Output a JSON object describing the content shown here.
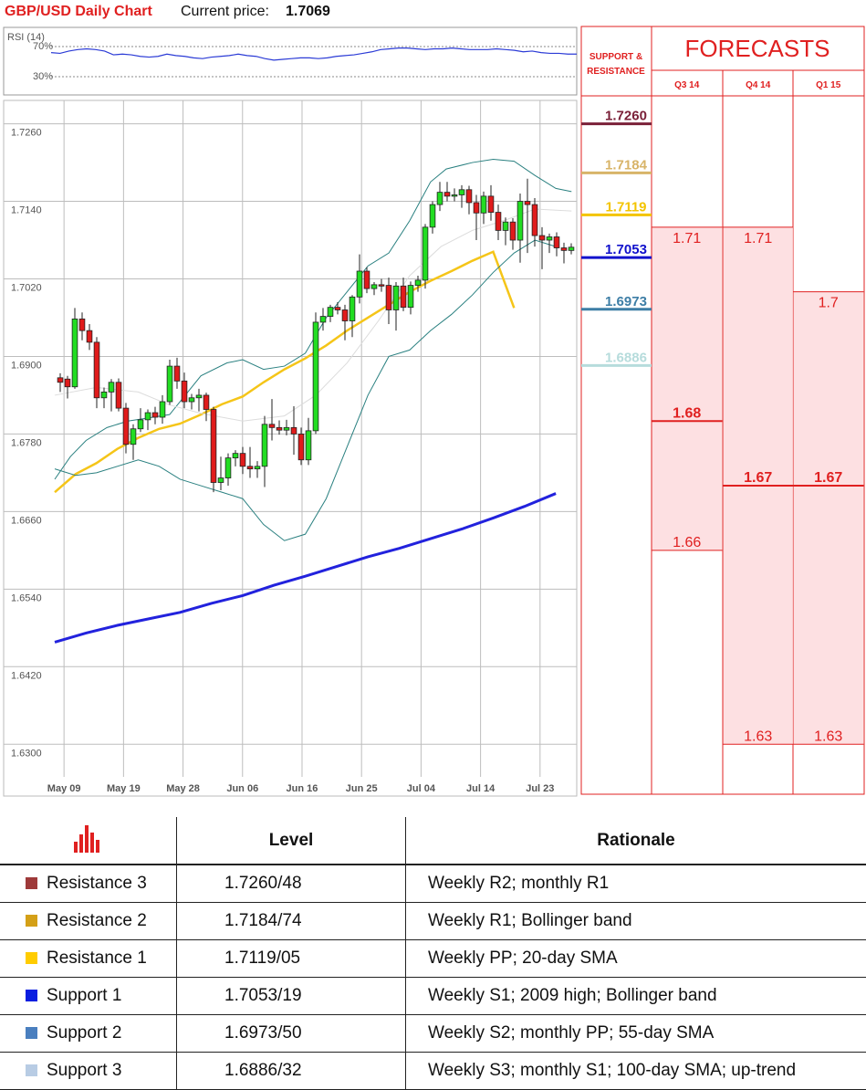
{
  "header": {
    "title": "GBP/USD Daily Chart",
    "price_label": "Current price:",
    "price_value": "1.7069"
  },
  "rsi": {
    "label": "RSI (14)",
    "levels": [
      "70%",
      "30%"
    ],
    "values": [
      62,
      61,
      64,
      66,
      67,
      66,
      64,
      59,
      60,
      59,
      57,
      56,
      57,
      60,
      58,
      57,
      55,
      54,
      56,
      57,
      58,
      60,
      58,
      57,
      54,
      52,
      53,
      54,
      55,
      55,
      54,
      55,
      57,
      58,
      59,
      61,
      63,
      66,
      67,
      68,
      68,
      67,
      66,
      67,
      67,
      68,
      67,
      66,
      66,
      66,
      67,
      66,
      65,
      63,
      64,
      62,
      61,
      61,
      60,
      60
    ]
  },
  "chart_data": {
    "type": "candlestick",
    "title": "GBP/USD Daily Chart",
    "ylim": [
      1.6282,
      1.7282
    ],
    "y_ticks": [
      "1.7260",
      "1.7140",
      "1.7020",
      "1.6900",
      "1.6780",
      "1.6660",
      "1.6540",
      "1.6420",
      "1.6300"
    ],
    "x_ticks": [
      "May 09",
      "May 19",
      "May 28",
      "Jun 06",
      "Jun 16",
      "Jun 25",
      "Jul 04",
      "Jul 14",
      "Jul 23"
    ],
    "x_tick_index": [
      1,
      9,
      17,
      25,
      33,
      41,
      49,
      57,
      65
    ],
    "candles": [
      [
        1.6867,
        1.6874,
        1.6845,
        1.686
      ],
      [
        1.6865,
        1.687,
        1.6835,
        1.6853
      ],
      [
        1.6853,
        1.6975,
        1.685,
        1.6958
      ],
      [
        1.6958,
        1.6968,
        1.6925,
        1.694
      ],
      [
        1.694,
        1.695,
        1.691,
        1.6922
      ],
      [
        1.6922,
        1.693,
        1.682,
        1.6836
      ],
      [
        1.6836,
        1.6852,
        1.682,
        1.6845
      ],
      [
        1.6845,
        1.6865,
        1.6815,
        1.686
      ],
      [
        1.686,
        1.6866,
        1.6815,
        1.682
      ],
      [
        1.682,
        1.6828,
        1.675,
        1.6764
      ],
      [
        1.6764,
        1.6795,
        1.674,
        1.6788
      ],
      [
        1.6788,
        1.682,
        1.6783,
        1.6802
      ],
      [
        1.6802,
        1.6818,
        1.6786,
        1.6813
      ],
      [
        1.6813,
        1.6822,
        1.6795,
        1.6806
      ],
      [
        1.6806,
        1.684,
        1.6796,
        1.683
      ],
      [
        1.683,
        1.6895,
        1.6825,
        1.6885
      ],
      [
        1.6885,
        1.6898,
        1.685,
        1.6862
      ],
      [
        1.6862,
        1.6875,
        1.682,
        1.683
      ],
      [
        1.683,
        1.6842,
        1.6818,
        1.6836
      ],
      [
        1.6836,
        1.685,
        1.6815,
        1.684
      ],
      [
        1.684,
        1.6844,
        1.68,
        1.6818
      ],
      [
        1.6818,
        1.6822,
        1.669,
        1.6705
      ],
      [
        1.6705,
        1.6745,
        1.6693,
        1.6712
      ],
      [
        1.6712,
        1.675,
        1.67,
        1.6743
      ],
      [
        1.6743,
        1.6755,
        1.673,
        1.675
      ],
      [
        1.675,
        1.676,
        1.6718,
        1.673
      ],
      [
        1.673,
        1.676,
        1.6712,
        1.6726
      ],
      [
        1.6726,
        1.6738,
        1.6712,
        1.673
      ],
      [
        1.673,
        1.6808,
        1.6698,
        1.6795
      ],
      [
        1.6795,
        1.6834,
        1.677,
        1.679
      ],
      [
        1.679,
        1.6801,
        1.6779,
        1.6786
      ],
      [
        1.6786,
        1.6802,
        1.6778,
        1.679
      ],
      [
        1.679,
        1.6823,
        1.6748,
        1.678
      ],
      [
        1.678,
        1.679,
        1.6732,
        1.674
      ],
      [
        1.674,
        1.6805,
        1.6732,
        1.6785
      ],
      [
        1.6785,
        1.6968,
        1.678,
        1.6953
      ],
      [
        1.6953,
        1.6975,
        1.694,
        1.6962
      ],
      [
        1.6962,
        1.698,
        1.6953,
        1.6976
      ],
      [
        1.6976,
        1.6984,
        1.6965,
        1.6972
      ],
      [
        1.6972,
        1.698,
        1.6925,
        1.6955
      ],
      [
        1.6955,
        1.6995,
        1.693,
        1.6992
      ],
      [
        1.6992,
        1.7058,
        1.6982,
        1.7032
      ],
      [
        1.7032,
        1.7038,
        1.6998,
        1.7005
      ],
      [
        1.7005,
        1.7015,
        1.6995,
        1.7011
      ],
      [
        1.7011,
        1.702,
        1.7,
        1.701
      ],
      [
        1.701,
        1.7022,
        1.695,
        1.6972
      ],
      [
        1.6972,
        1.7015,
        1.694,
        1.7009
      ],
      [
        1.7009,
        1.7022,
        1.697,
        1.6976
      ],
      [
        1.6976,
        1.7016,
        1.6965,
        1.701
      ],
      [
        1.701,
        1.7025,
        1.7,
        1.7018
      ],
      [
        1.7018,
        1.7105,
        1.7005,
        1.71
      ],
      [
        1.71,
        1.714,
        1.709,
        1.7135
      ],
      [
        1.7135,
        1.717,
        1.7125,
        1.7154
      ],
      [
        1.7154,
        1.717,
        1.714,
        1.7148
      ],
      [
        1.7148,
        1.716,
        1.714,
        1.715
      ],
      [
        1.715,
        1.7165,
        1.713,
        1.7158
      ],
      [
        1.7158,
        1.7164,
        1.712,
        1.7138
      ],
      [
        1.7138,
        1.715,
        1.708,
        1.7122
      ],
      [
        1.7122,
        1.7155,
        1.7105,
        1.7148
      ],
      [
        1.7148,
        1.7165,
        1.711,
        1.7123
      ],
      [
        1.7123,
        1.7135,
        1.708,
        1.7095
      ],
      [
        1.7095,
        1.7115,
        1.7072,
        1.7108
      ],
      [
        1.7108,
        1.7114,
        1.7065,
        1.708
      ],
      [
        1.708,
        1.7152,
        1.7045,
        1.714
      ],
      [
        1.714,
        1.7175,
        1.706,
        1.7135
      ],
      [
        1.7135,
        1.7145,
        1.707,
        1.7087
      ],
      [
        1.7087,
        1.71,
        1.7035,
        1.708
      ],
      [
        1.708,
        1.709,
        1.706,
        1.7085
      ],
      [
        1.7085,
        1.7092,
        1.7055,
        1.7068
      ],
      [
        1.7068,
        1.7076,
        1.7044,
        1.7064
      ],
      [
        1.7064,
        1.7075,
        1.7058,
        1.7069
      ]
    ],
    "series": [
      {
        "color": "#f5c518",
        "values": [
          [
            0,
            1.669
          ],
          [
            4,
            1.6718
          ],
          [
            8,
            1.6735
          ],
          [
            12,
            1.6757
          ],
          [
            16,
            1.6774
          ],
          [
            20,
            1.6788
          ],
          [
            24,
            1.6796
          ],
          [
            28,
            1.681
          ],
          [
            32,
            1.6826
          ],
          [
            36,
            1.6838
          ],
          [
            40,
            1.686
          ],
          [
            44,
            1.688
          ],
          [
            48,
            1.6897
          ],
          [
            52,
            1.6917
          ],
          [
            56,
            1.694
          ],
          [
            60,
            1.696
          ],
          [
            64,
            1.698
          ],
          [
            68,
            1.7
          ],
          [
            72,
            1.7017
          ],
          [
            76,
            1.7032
          ],
          [
            80,
            1.7048
          ],
          [
            84,
            1.7062
          ],
          [
            88,
            1.6975
          ]
        ]
      },
      {
        "color": "#2222dd",
        "values": [
          [
            0,
            1.6458
          ],
          [
            6,
            1.6472
          ],
          [
            12,
            1.6484
          ],
          [
            18,
            1.6494
          ],
          [
            24,
            1.6504
          ],
          [
            30,
            1.6518
          ],
          [
            36,
            1.653
          ],
          [
            42,
            1.6546
          ],
          [
            48,
            1.656
          ],
          [
            54,
            1.6575
          ],
          [
            60,
            1.659
          ],
          [
            66,
            1.6603
          ],
          [
            72,
            1.6618
          ],
          [
            78,
            1.6633
          ],
          [
            84,
            1.665
          ],
          [
            90,
            1.6668
          ],
          [
            96,
            1.6688
          ]
        ]
      },
      {
        "color": "#2a8080",
        "values": [
          [
            0,
            1.671
          ],
          [
            3,
            1.6745
          ],
          [
            6,
            1.677
          ],
          [
            10,
            1.679
          ],
          [
            14,
            1.68
          ],
          [
            18,
            1.6805
          ],
          [
            22,
            1.681
          ],
          [
            28,
            1.687
          ],
          [
            33,
            1.689
          ],
          [
            36,
            1.6895
          ],
          [
            40,
            1.688
          ],
          [
            44,
            1.6885
          ],
          [
            48,
            1.6905
          ],
          [
            52,
            1.696
          ],
          [
            56,
            1.7
          ],
          [
            60,
            1.704
          ],
          [
            64,
            1.706
          ],
          [
            68,
            1.711
          ],
          [
            70,
            1.714
          ],
          [
            72,
            1.717
          ],
          [
            75,
            1.719
          ],
          [
            80,
            1.72
          ],
          [
            84,
            1.7205
          ],
          [
            88,
            1.7202
          ],
          [
            92,
            1.718
          ],
          [
            96,
            1.716
          ],
          [
            99,
            1.7155
          ]
        ]
      },
      {
        "color": "#2a8080",
        "values": [
          [
            0,
            1.6726
          ],
          [
            4,
            1.6716
          ],
          [
            8,
            1.672
          ],
          [
            12,
            1.673
          ],
          [
            16,
            1.674
          ],
          [
            20,
            1.673
          ],
          [
            24,
            1.671
          ],
          [
            28,
            1.67
          ],
          [
            32,
            1.669
          ],
          [
            36,
            1.668
          ],
          [
            40,
            1.664
          ],
          [
            44,
            1.6615
          ],
          [
            48,
            1.6625
          ],
          [
            52,
            1.668
          ],
          [
            56,
            1.676
          ],
          [
            60,
            1.684
          ],
          [
            64,
            1.69
          ],
          [
            68,
            1.691
          ],
          [
            72,
            1.694
          ],
          [
            76,
            1.6965
          ],
          [
            80,
            1.6995
          ],
          [
            84,
            1.703
          ],
          [
            88,
            1.706
          ],
          [
            92,
            1.708
          ],
          [
            96,
            1.707
          ]
        ]
      },
      {
        "color": "#dcdcdc",
        "values": [
          [
            0,
            1.684
          ],
          [
            8,
            1.6852
          ],
          [
            16,
            1.6845
          ],
          [
            22,
            1.6825
          ],
          [
            28,
            1.6812
          ],
          [
            36,
            1.68
          ],
          [
            44,
            1.6808
          ],
          [
            50,
            1.684
          ],
          [
            56,
            1.689
          ],
          [
            62,
            1.6955
          ],
          [
            68,
            1.7025
          ],
          [
            74,
            1.707
          ],
          [
            80,
            1.7095
          ],
          [
            86,
            1.711
          ],
          [
            92,
            1.7128
          ],
          [
            99,
            1.7125
          ]
        ]
      }
    ],
    "support_resistance": [
      {
        "value": "1.7260",
        "color": "#7a2038"
      },
      {
        "value": "1.7184",
        "color": "#d8b468"
      },
      {
        "value": "1.7119",
        "color": "#f3c400"
      },
      {
        "value": "1.7053",
        "color": "#1111cc"
      },
      {
        "value": "1.6973",
        "color": "#3d7ea6"
      },
      {
        "value": "1.6886",
        "color": "#b6dcdc"
      }
    ]
  },
  "forecasts": {
    "title": "FORECASTS",
    "sr_label_line1": "SUPPORT &",
    "sr_label_line2": "RESISTANCE",
    "columns": [
      {
        "label": "Q3 14",
        "high": "1.71",
        "mid": "1.68",
        "low": "1.66",
        "high_val": 1.71,
        "mid_val": 1.68,
        "low_val": 1.66
      },
      {
        "label": "Q4 14",
        "high": "1.71",
        "mid": "1.67",
        "low": "1.63",
        "high_val": 1.71,
        "mid_val": 1.67,
        "low_val": 1.63
      },
      {
        "label": "Q1 15",
        "high": "1.7",
        "mid": "1.67",
        "low": "1.63",
        "high_val": 1.7,
        "mid_val": 1.67,
        "low_val": 1.63
      }
    ]
  },
  "levels_table": {
    "header_level": "Level",
    "header_rationale": "Rationale",
    "icon": "bar-chart-icon",
    "rows": [
      {
        "name": "Resistance 3",
        "level": "1.7260/48",
        "rationale": "Weekly R2; monthly R1",
        "color": "#9e3a3a"
      },
      {
        "name": "Resistance 2",
        "level": "1.7184/74",
        "rationale": "Weekly R1; Bollinger band",
        "color": "#d4a017"
      },
      {
        "name": "Resistance 1",
        "level": "1.7119/05",
        "rationale": "Weekly PP; 20-day SMA",
        "color": "#ffcc00"
      },
      {
        "name": "Support 1",
        "level": "1.7053/19",
        "rationale": "Weekly S1; 2009 high; Bollinger band",
        "color": "#0a1ee0"
      },
      {
        "name": "Support 2",
        "level": "1.6973/50",
        "rationale": "Weekly S2; monthly PP; 55-day SMA",
        "color": "#4a7fbf"
      },
      {
        "name": "Support 3",
        "level": "1.6886/32",
        "rationale": "Weekly S3; monthly S1; 100-day SMA; up-trend",
        "color": "#b8cce4"
      }
    ]
  }
}
